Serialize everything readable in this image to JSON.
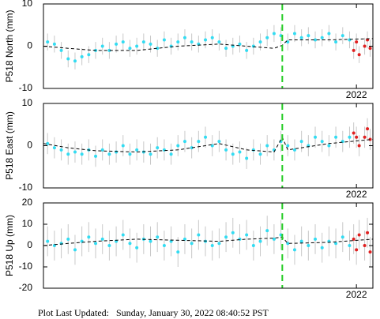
{
  "chart_data": [
    {
      "type": "scatter",
      "ylabel": "P518 North (mm)",
      "xlim": [
        2020.86,
        2022.06
      ],
      "xticks": [
        2022
      ],
      "ylim": [
        -10,
        10
      ],
      "yticks": [
        -10,
        0,
        10
      ],
      "error_color": "#c8c8c8",
      "series": [
        {
          "color": "#33dcf2",
          "error": 2,
          "x": [
            2020.875,
            2020.9,
            2020.925,
            2020.95,
            2020.975,
            2021.0,
            2021.025,
            2021.05,
            2021.075,
            2021.1,
            2021.125,
            2021.15,
            2021.175,
            2021.2,
            2021.225,
            2021.25,
            2021.275,
            2021.3,
            2021.325,
            2021.35,
            2021.375,
            2021.4,
            2021.425,
            2021.45,
            2021.475,
            2021.5,
            2021.525,
            2021.55,
            2021.575,
            2021.6,
            2021.625,
            2021.65,
            2021.675,
            2021.7,
            2021.725,
            2021.75,
            2021.775,
            2021.8,
            2021.825,
            2021.85,
            2021.875,
            2021.9,
            2021.925,
            2021.95,
            2021.975
          ],
          "values": [
            1,
            0.5,
            -1,
            -3,
            -3.5,
            -2.5,
            -2,
            -1,
            0,
            -1,
            0.5,
            1,
            -0.5,
            0,
            1,
            0.5,
            -0.5,
            1.5,
            0,
            1,
            2,
            1,
            0.5,
            1.5,
            2,
            1,
            -0.5,
            0,
            0.5,
            -1,
            0,
            1,
            2,
            3,
            2.5,
            1,
            3,
            2,
            2.5,
            1.5,
            2,
            3,
            1,
            2.5,
            1.5
          ]
        },
        {
          "color": "#e02020",
          "error": 2,
          "x": [
            2021.99,
            2022.0,
            2022.01,
            2022.03,
            2022.04,
            2022.05
          ],
          "values": [
            -1,
            1,
            -2,
            0,
            1.5,
            -0.5
          ]
        }
      ],
      "fit": {
        "color": "#000000",
        "x": [
          2020.86,
          2020.95,
          2021.05,
          2021.2,
          2021.35,
          2021.5,
          2021.6,
          2021.7,
          2021.73,
          2021.75,
          2021.9,
          2022.06
        ],
        "values": [
          0,
          -0.5,
          -1,
          -1,
          0,
          0.5,
          0,
          -0.5,
          0.2,
          1.5,
          1.5,
          1.8
        ]
      },
      "vline": {
        "x": 2021.73,
        "color": "#22cc22"
      }
    },
    {
      "type": "scatter",
      "ylabel": "P518 East (mm)",
      "xlim": [
        2020.86,
        2022.06
      ],
      "xticks": [
        2022
      ],
      "ylim": [
        -10,
        10
      ],
      "yticks": [
        -10,
        0,
        10
      ],
      "error_color": "#c8c8c8",
      "series": [
        {
          "color": "#33dcf2",
          "error": 2.5,
          "x": [
            2020.875,
            2020.9,
            2020.925,
            2020.95,
            2020.975,
            2021.0,
            2021.025,
            2021.05,
            2021.075,
            2021.1,
            2021.125,
            2021.15,
            2021.175,
            2021.2,
            2021.225,
            2021.25,
            2021.275,
            2021.3,
            2021.325,
            2021.35,
            2021.375,
            2021.4,
            2021.425,
            2021.45,
            2021.475,
            2021.5,
            2021.525,
            2021.55,
            2021.575,
            2021.6,
            2021.625,
            2021.65,
            2021.675,
            2021.7,
            2021.725,
            2021.75,
            2021.775,
            2021.8,
            2021.825,
            2021.85,
            2021.875,
            2021.9,
            2021.925,
            2021.95,
            2021.975
          ],
          "values": [
            0.5,
            -0.5,
            -1,
            -2,
            -1.5,
            -2,
            -1,
            -2.5,
            -1,
            -2,
            -1.5,
            0,
            -2,
            -1,
            -1.5,
            -2,
            -0.5,
            -1,
            -2,
            0,
            1,
            -0.5,
            1,
            2,
            0,
            1,
            -1,
            -2,
            -1.5,
            -3,
            -1,
            -2,
            0,
            -1,
            1,
            0,
            -1,
            1,
            0,
            2,
            1,
            0,
            2,
            1,
            2
          ]
        },
        {
          "color": "#e02020",
          "error": 2.5,
          "x": [
            2021.99,
            2022.0,
            2022.01,
            2022.03,
            2022.04,
            2022.05
          ],
          "values": [
            3,
            2,
            0,
            2,
            4,
            1.5
          ]
        }
      ],
      "fit": {
        "color": "#000000",
        "x": [
          2020.86,
          2020.95,
          2021.05,
          2021.2,
          2021.35,
          2021.5,
          2021.6,
          2021.7,
          2021.73,
          2021.75,
          2021.9,
          2022.06
        ],
        "values": [
          0.5,
          -0.5,
          -1.2,
          -1.5,
          -1,
          0.5,
          -1,
          -1.5,
          2,
          -1,
          0.5,
          1.5
        ]
      },
      "vline": {
        "x": 2021.73,
        "color": "#22cc22"
      }
    },
    {
      "type": "scatter",
      "ylabel": "P518 Up (mm)",
      "xlim": [
        2020.86,
        2022.06
      ],
      "xticks": [
        2022
      ],
      "ylim": [
        -20,
        20
      ],
      "yticks": [
        -20,
        -10,
        0,
        10,
        20
      ],
      "error_color": "#c8c8c8",
      "series": [
        {
          "color": "#33dcf2",
          "error": 7,
          "x": [
            2020.875,
            2020.9,
            2020.925,
            2020.95,
            2020.975,
            2021.0,
            2021.025,
            2021.05,
            2021.075,
            2021.1,
            2021.125,
            2021.15,
            2021.175,
            2021.2,
            2021.225,
            2021.25,
            2021.275,
            2021.3,
            2021.325,
            2021.35,
            2021.375,
            2021.4,
            2021.425,
            2021.45,
            2021.475,
            2021.5,
            2021.525,
            2021.55,
            2021.575,
            2021.6,
            2021.625,
            2021.65,
            2021.675,
            2021.7,
            2021.725,
            2021.75,
            2021.775,
            2021.8,
            2021.825,
            2021.85,
            2021.875,
            2021.9,
            2021.925,
            2021.95,
            2021.975
          ],
          "values": [
            2,
            0,
            1,
            3,
            -2,
            2,
            4,
            1,
            3,
            0,
            2,
            5,
            1,
            -1,
            3,
            2,
            4,
            0,
            2,
            -3,
            3,
            1,
            5,
            2,
            0,
            1,
            4,
            6,
            3,
            5,
            0,
            2,
            7,
            3,
            5,
            1,
            -2,
            2,
            0,
            3,
            -1,
            2,
            1,
            4,
            0
          ]
        },
        {
          "color": "#e02020",
          "error": 7,
          "x": [
            2021.99,
            2022.0,
            2022.01,
            2022.03,
            2022.04,
            2022.05
          ],
          "values": [
            3,
            -2,
            5,
            0,
            6,
            -3
          ]
        }
      ],
      "fit": {
        "color": "#000000",
        "x": [
          2020.86,
          2020.95,
          2021.05,
          2021.2,
          2021.35,
          2021.5,
          2021.6,
          2021.7,
          2021.73,
          2021.75,
          2021.9,
          2022.06
        ],
        "values": [
          0,
          1,
          2,
          3,
          2.5,
          2,
          3,
          3.5,
          4,
          1,
          1.5,
          3
        ]
      },
      "vline": {
        "x": 2021.73,
        "color": "#22cc22"
      }
    }
  ],
  "footer": "Plot Last Updated:   Sunday, January 30, 2022 08:40:52 PST"
}
